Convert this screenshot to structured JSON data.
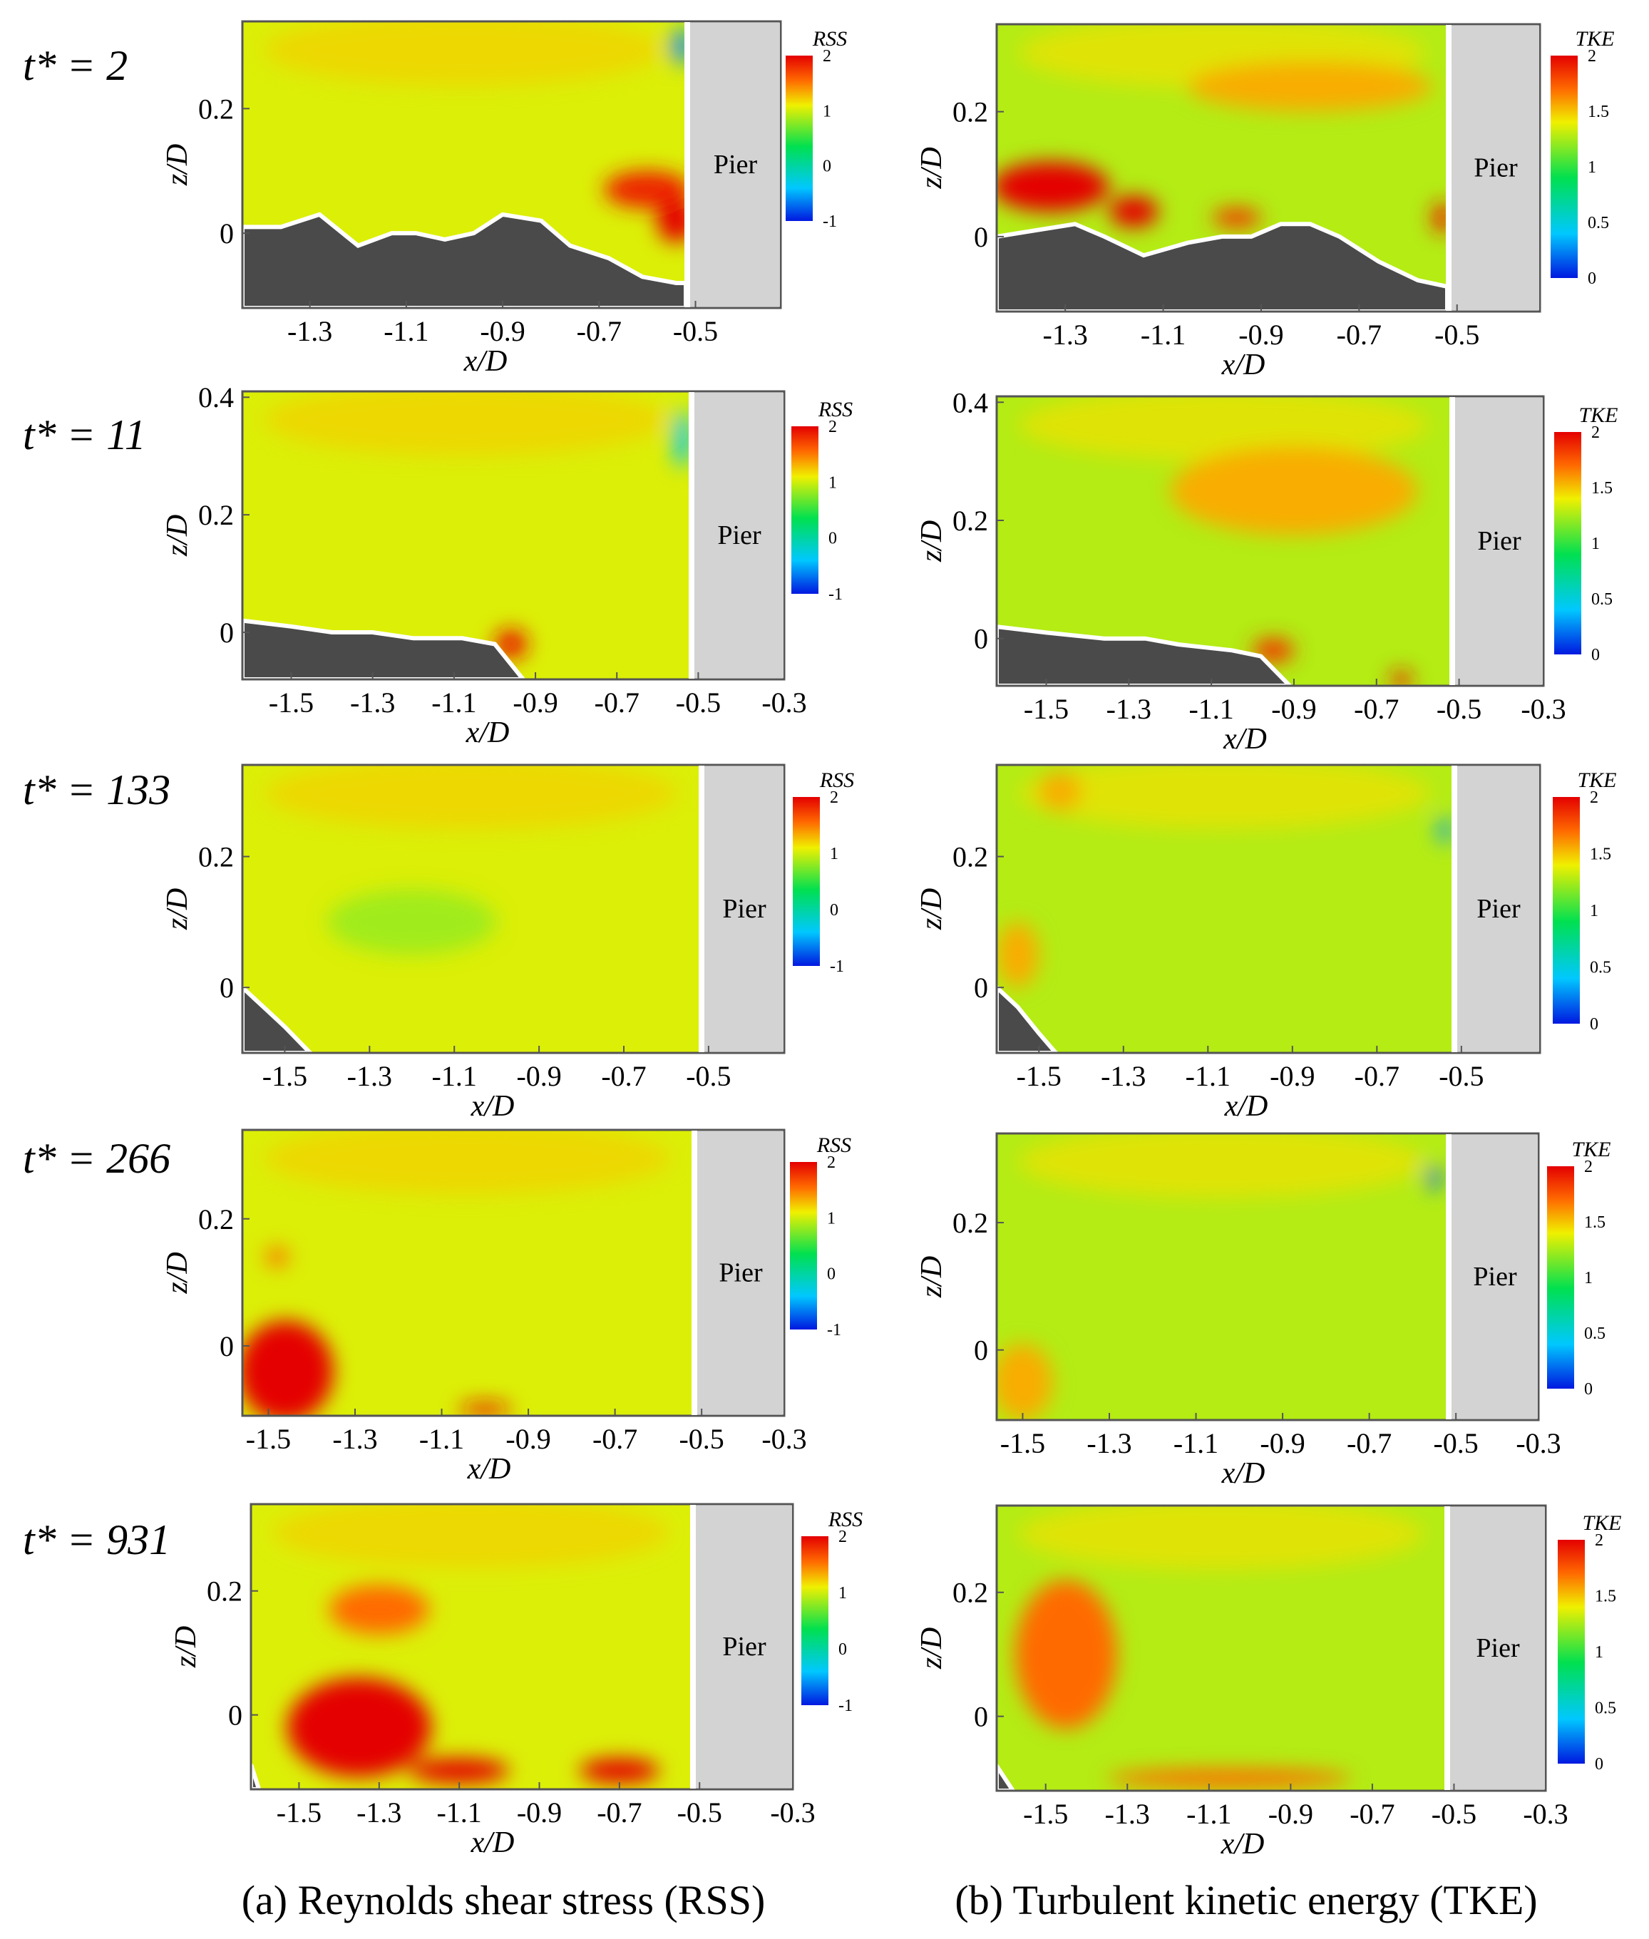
{
  "figure": {
    "captions": {
      "rss": "(a) Reynolds shear stress (RSS)",
      "tke": "(b) Turbulent kinetic energy (TKE)"
    },
    "pier_label": "Pier",
    "xlabel": "x/D",
    "ylabel": "z/D"
  },
  "colors": {
    "bed": "#4a4a4a",
    "pier": "#d3d3d3",
    "colormap": [
      "#0018e0",
      "#00c8ff",
      "#00e050",
      "#f0f000",
      "#ff6a00",
      "#e40000"
    ]
  },
  "chart_data": [
    {
      "type": "heatmap",
      "panel": "rss",
      "time_label": "t* = 2",
      "colorbar": {
        "title": "RSS",
        "ticks": [
          "2",
          "1",
          "0",
          "-1"
        ]
      },
      "xticks": [
        "-1.3",
        "-1.1",
        "-0.9",
        "-0.7",
        "-0.5"
      ],
      "yticks": [
        "0.2",
        "0"
      ],
      "xlim": [
        -1.44,
        -0.32
      ],
      "ylim": [
        -0.12,
        0.34
      ],
      "bed_profile": [
        [
          -1.44,
          0.01
        ],
        [
          -1.36,
          0.01
        ],
        [
          -1.28,
          0.03
        ],
        [
          -1.2,
          -0.02
        ],
        [
          -1.13,
          0.0
        ],
        [
          -1.08,
          0.0
        ],
        [
          -1.02,
          -0.01
        ],
        [
          -0.96,
          0.0
        ],
        [
          -0.9,
          0.03
        ],
        [
          -0.82,
          0.02
        ],
        [
          -0.76,
          -0.02
        ],
        [
          -0.68,
          -0.04
        ],
        [
          -0.61,
          -0.07
        ],
        [
          -0.54,
          -0.08
        ],
        [
          -0.52,
          -0.08
        ]
      ],
      "features": [
        {
          "x": -0.6,
          "z": 0.07,
          "value": 1.8,
          "w": 0.18,
          "h": 0.06
        },
        {
          "x": -0.54,
          "z": 0.02,
          "value": 2.0,
          "w": 0.08,
          "h": 0.07
        },
        {
          "x": -0.53,
          "z": 0.3,
          "value": -0.6,
          "w": 0.04,
          "h": 0.06
        }
      ]
    },
    {
      "type": "heatmap",
      "panel": "tke",
      "time_label": "t* = 2",
      "colorbar": {
        "title": "TKE",
        "ticks": [
          "2",
          "1.5",
          "1",
          "0.5",
          "0"
        ]
      },
      "xticks": [
        "-1.3",
        "-1.1",
        "-0.9",
        "-0.7",
        "-0.5"
      ],
      "yticks": [
        "0.2",
        "0"
      ],
      "xlim": [
        -1.44,
        -0.32
      ],
      "ylim": [
        -0.12,
        0.34
      ],
      "bed_profile": [
        [
          -1.44,
          0.0
        ],
        [
          -1.36,
          0.01
        ],
        [
          -1.28,
          0.02
        ],
        [
          -1.22,
          0.0
        ],
        [
          -1.14,
          -0.03
        ],
        [
          -1.05,
          -0.01
        ],
        [
          -0.98,
          0.0
        ],
        [
          -0.92,
          0.0
        ],
        [
          -0.86,
          0.02
        ],
        [
          -0.8,
          0.02
        ],
        [
          -0.74,
          0.0
        ],
        [
          -0.66,
          -0.04
        ],
        [
          -0.58,
          -0.07
        ],
        [
          -0.52,
          -0.08
        ]
      ],
      "features": [
        {
          "x": -1.33,
          "z": 0.08,
          "value": 2.0,
          "w": 0.24,
          "h": 0.08
        },
        {
          "x": -1.16,
          "z": 0.04,
          "value": 2.0,
          "w": 0.1,
          "h": 0.05
        },
        {
          "x": -0.95,
          "z": 0.03,
          "value": 1.8,
          "w": 0.1,
          "h": 0.03
        },
        {
          "x": -0.53,
          "z": 0.03,
          "value": 1.9,
          "w": 0.04,
          "h": 0.05
        },
        {
          "x": -0.8,
          "z": 0.24,
          "value": 1.4,
          "w": 0.5,
          "h": 0.08
        }
      ]
    },
    {
      "type": "heatmap",
      "panel": "rss",
      "time_label": "t* = 11",
      "colorbar": {
        "title": "RSS",
        "ticks": [
          "2",
          "1",
          "0",
          "-1"
        ]
      },
      "xticks": [
        "-1.5",
        "-1.3",
        "-1.1",
        "-0.9",
        "-0.7",
        "-0.5",
        "-0.3"
      ],
      "yticks": [
        "0.4",
        "0.2",
        "0"
      ],
      "xlim": [
        -1.62,
        -0.28
      ],
      "ylim": [
        -0.08,
        0.41
      ],
      "bed_profile": [
        [
          -1.62,
          0.02
        ],
        [
          -1.5,
          0.01
        ],
        [
          -1.4,
          0.0
        ],
        [
          -1.3,
          0.0
        ],
        [
          -1.2,
          -0.01
        ],
        [
          -1.08,
          -0.01
        ],
        [
          -1.0,
          -0.02
        ],
        [
          -0.93,
          -0.08
        ]
      ],
      "features": [
        {
          "x": -0.96,
          "z": -0.02,
          "value": 1.9,
          "w": 0.08,
          "h": 0.05
        },
        {
          "x": -0.54,
          "z": 0.33,
          "value": -0.4,
          "w": 0.04,
          "h": 0.1
        }
      ]
    },
    {
      "type": "heatmap",
      "panel": "tke",
      "time_label": "t* = 11",
      "colorbar": {
        "title": "TKE",
        "ticks": [
          "2",
          "1.5",
          "1",
          "0.5",
          "0"
        ]
      },
      "xticks": [
        "-1.5",
        "-1.3",
        "-1.1",
        "-0.9",
        "-0.7",
        "-0.5",
        "-0.3"
      ],
      "yticks": [
        "0.4",
        "0.2",
        "0"
      ],
      "xlim": [
        -1.62,
        -0.28
      ],
      "ylim": [
        -0.08,
        0.41
      ],
      "bed_profile": [
        [
          -1.62,
          0.02
        ],
        [
          -1.5,
          0.01
        ],
        [
          -1.36,
          0.0
        ],
        [
          -1.26,
          0.0
        ],
        [
          -1.18,
          -0.01
        ],
        [
          -1.05,
          -0.02
        ],
        [
          -0.98,
          -0.03
        ],
        [
          -0.91,
          -0.08
        ]
      ],
      "features": [
        {
          "x": -0.95,
          "z": -0.02,
          "value": 1.8,
          "w": 0.1,
          "h": 0.04
        },
        {
          "x": -0.64,
          "z": -0.07,
          "value": 1.9,
          "w": 0.05,
          "h": 0.03
        },
        {
          "x": -0.9,
          "z": 0.25,
          "value": 1.4,
          "w": 0.6,
          "h": 0.15
        }
      ]
    },
    {
      "type": "heatmap",
      "panel": "rss",
      "time_label": "t* = 133",
      "colorbar": {
        "title": "RSS",
        "ticks": [
          "2",
          "1",
          "0",
          "-1"
        ]
      },
      "xticks": [
        "-1.5",
        "-1.3",
        "-1.1",
        "-0.9",
        "-0.7",
        "-0.5"
      ],
      "yticks": [
        "0.2",
        "0"
      ],
      "xlim": [
        -1.6,
        -0.3
      ],
      "ylim": [
        -0.1,
        0.34
      ],
      "bed_profile": [
        [
          -1.6,
          -0.0
        ],
        [
          -1.55,
          -0.03
        ],
        [
          -1.5,
          -0.06
        ],
        [
          -1.44,
          -0.1
        ]
      ],
      "features": [
        {
          "x": -1.2,
          "z": 0.1,
          "value": 0.6,
          "w": 0.4,
          "h": 0.1
        }
      ]
    },
    {
      "type": "heatmap",
      "panel": "tke",
      "time_label": "t* = 133",
      "colorbar": {
        "title": "TKE",
        "ticks": [
          "2",
          "1.5",
          "1",
          "0.5",
          "0"
        ]
      },
      "xticks": [
        "-1.5",
        "-1.3",
        "-1.1",
        "-0.9",
        "-0.7",
        "-0.5"
      ],
      "yticks": [
        "0.2",
        "0"
      ],
      "xlim": [
        -1.6,
        -0.3
      ],
      "ylim": [
        -0.1,
        0.34
      ],
      "bed_profile": [
        [
          -1.6,
          -0.0
        ],
        [
          -1.55,
          -0.03
        ],
        [
          -1.5,
          -0.07
        ],
        [
          -1.46,
          -0.1
        ]
      ],
      "features": [
        {
          "x": -1.55,
          "z": 0.05,
          "value": 1.4,
          "w": 0.1,
          "h": 0.1
        },
        {
          "x": -1.45,
          "z": 0.3,
          "value": 1.4,
          "w": 0.1,
          "h": 0.06
        },
        {
          "x": -0.54,
          "z": 0.24,
          "value": 0.3,
          "w": 0.03,
          "h": 0.04
        }
      ]
    },
    {
      "type": "heatmap",
      "panel": "rss",
      "time_label": "t* = 266",
      "colorbar": {
        "title": "RSS",
        "ticks": [
          "2",
          "1",
          "0",
          "-1"
        ]
      },
      "xticks": [
        "-1.5",
        "-1.3",
        "-1.1",
        "-0.9",
        "-0.7",
        "-0.5",
        "-0.3"
      ],
      "yticks": [
        "0.2",
        "0"
      ],
      "xlim": [
        -1.56,
        -0.3
      ],
      "ylim": [
        -0.11,
        0.34
      ],
      "bed_profile": [],
      "features": [
        {
          "x": -1.46,
          "z": -0.04,
          "value": 2.0,
          "w": 0.22,
          "h": 0.16
        },
        {
          "x": -1.48,
          "z": 0.14,
          "value": 1.4,
          "w": 0.05,
          "h": 0.03
        },
        {
          "x": -1.0,
          "z": -0.1,
          "value": 1.9,
          "w": 0.12,
          "h": 0.02
        }
      ]
    },
    {
      "type": "heatmap",
      "panel": "tke",
      "time_label": "t* = 266",
      "colorbar": {
        "title": "TKE",
        "ticks": [
          "2",
          "1.5",
          "1",
          "0.5",
          "0"
        ]
      },
      "xticks": [
        "-1.5",
        "-1.3",
        "-1.1",
        "-0.9",
        "-0.7",
        "-0.5",
        "-0.3"
      ],
      "yticks": [
        "0.2",
        "0"
      ],
      "xlim": [
        -1.56,
        -0.3
      ],
      "ylim": [
        -0.11,
        0.34
      ],
      "bed_profile": [],
      "features": [
        {
          "x": -1.5,
          "z": -0.05,
          "value": 1.4,
          "w": 0.14,
          "h": 0.12
        },
        {
          "x": -0.55,
          "z": 0.27,
          "value": 0.2,
          "w": 0.03,
          "h": 0.04
        }
      ]
    },
    {
      "type": "heatmap",
      "panel": "rss",
      "time_label": "t* = 931",
      "colorbar": {
        "title": "RSS",
        "ticks": [
          "2",
          "1",
          "0",
          "-1"
        ]
      },
      "xticks": [
        "-1.5",
        "-1.3",
        "-1.1",
        "-0.9",
        "-0.7",
        "-0.5",
        "-0.3"
      ],
      "yticks": [
        "0.2",
        "0"
      ],
      "xlim": [
        -1.62,
        -0.28
      ],
      "ylim": [
        -0.12,
        0.34
      ],
      "bed_profile": [
        [
          -1.62,
          -0.08
        ],
        [
          -1.6,
          -0.12
        ]
      ],
      "features": [
        {
          "x": -1.35,
          "z": -0.02,
          "value": 2.0,
          "w": 0.36,
          "h": 0.16
        },
        {
          "x": -1.1,
          "z": -0.09,
          "value": 2.0,
          "w": 0.25,
          "h": 0.04
        },
        {
          "x": -0.7,
          "z": -0.09,
          "value": 2.0,
          "w": 0.2,
          "h": 0.04
        },
        {
          "x": -1.3,
          "z": 0.17,
          "value": 1.4,
          "w": 0.25,
          "h": 0.08
        }
      ]
    },
    {
      "type": "heatmap",
      "panel": "tke",
      "time_label": "t* = 931",
      "colorbar": {
        "title": "TKE",
        "ticks": [
          "2",
          "1.5",
          "1",
          "0.5",
          "0"
        ]
      },
      "xticks": [
        "-1.5",
        "-1.3",
        "-1.1",
        "-0.9",
        "-0.7",
        "-0.5",
        "-0.3"
      ],
      "yticks": [
        "0.2",
        "0"
      ],
      "xlim": [
        -1.62,
        -0.28
      ],
      "ylim": [
        -0.12,
        0.34
      ],
      "bed_profile": [
        [
          -1.62,
          -0.08
        ],
        [
          -1.58,
          -0.12
        ]
      ],
      "features": [
        {
          "x": -1.45,
          "z": 0.1,
          "value": 1.6,
          "w": 0.25,
          "h": 0.24
        },
        {
          "x": -1.05,
          "z": -0.1,
          "value": 1.6,
          "w": 0.6,
          "h": 0.03
        }
      ]
    }
  ]
}
